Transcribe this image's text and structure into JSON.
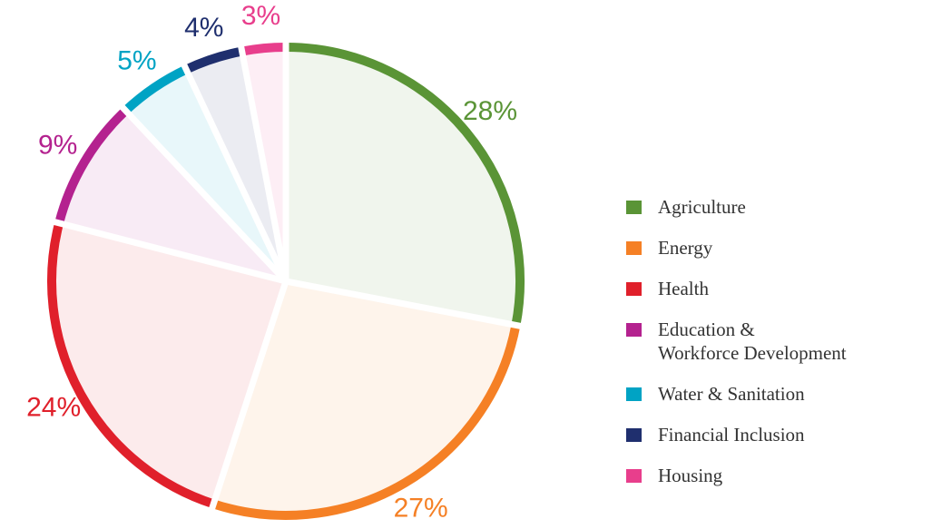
{
  "chart_data": {
    "type": "pie",
    "categories": [
      "Agriculture",
      "Energy",
      "Health",
      "Education &\nWorkforce Development",
      "Water & Sanitation",
      "Financial Inclusion",
      "Housing"
    ],
    "values": [
      28,
      27,
      24,
      9,
      5,
      4,
      3
    ],
    "value_labels": [
      "28%",
      "27%",
      "24%",
      "9%",
      "5%",
      "4%",
      "3%"
    ],
    "colors": [
      "#5a9436",
      "#f58025",
      "#e0202b",
      "#b4228f",
      "#00a3c4",
      "#1f2f6e",
      "#e83e8c"
    ],
    "legend": "right"
  }
}
